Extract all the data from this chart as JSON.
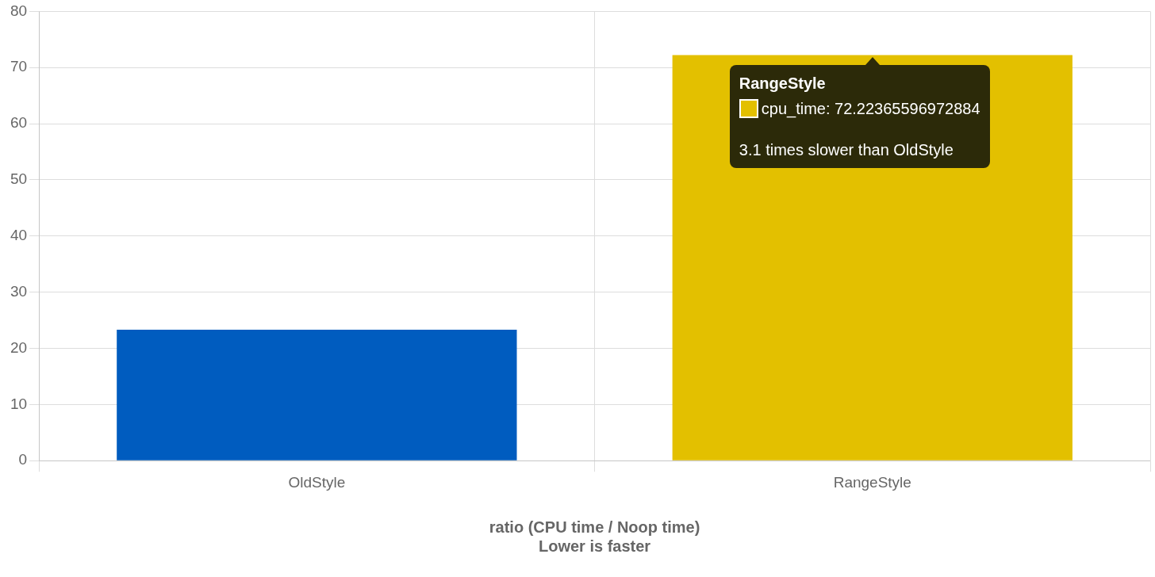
{
  "chart_data": {
    "type": "bar",
    "xlabel": "ratio (CPU time / Noop time)\nLower is faster",
    "categories": [
      "OldStyle",
      "RangeStyle"
    ],
    "series": [
      {
        "colors": [
          "#005cbf",
          "#e3c000"
        ],
        "values": [
          23.3,
          72.22365596972884
        ]
      }
    ],
    "ylim": [
      0,
      80
    ],
    "yticks": [
      0,
      10,
      20,
      30,
      40,
      50,
      60,
      70,
      80
    ],
    "grid": true,
    "legend": false,
    "annotations": [
      "RangeStyle",
      "cpu_time: 72.22365596972884",
      "3.1 times slower than OldStyle"
    ]
  }
}
